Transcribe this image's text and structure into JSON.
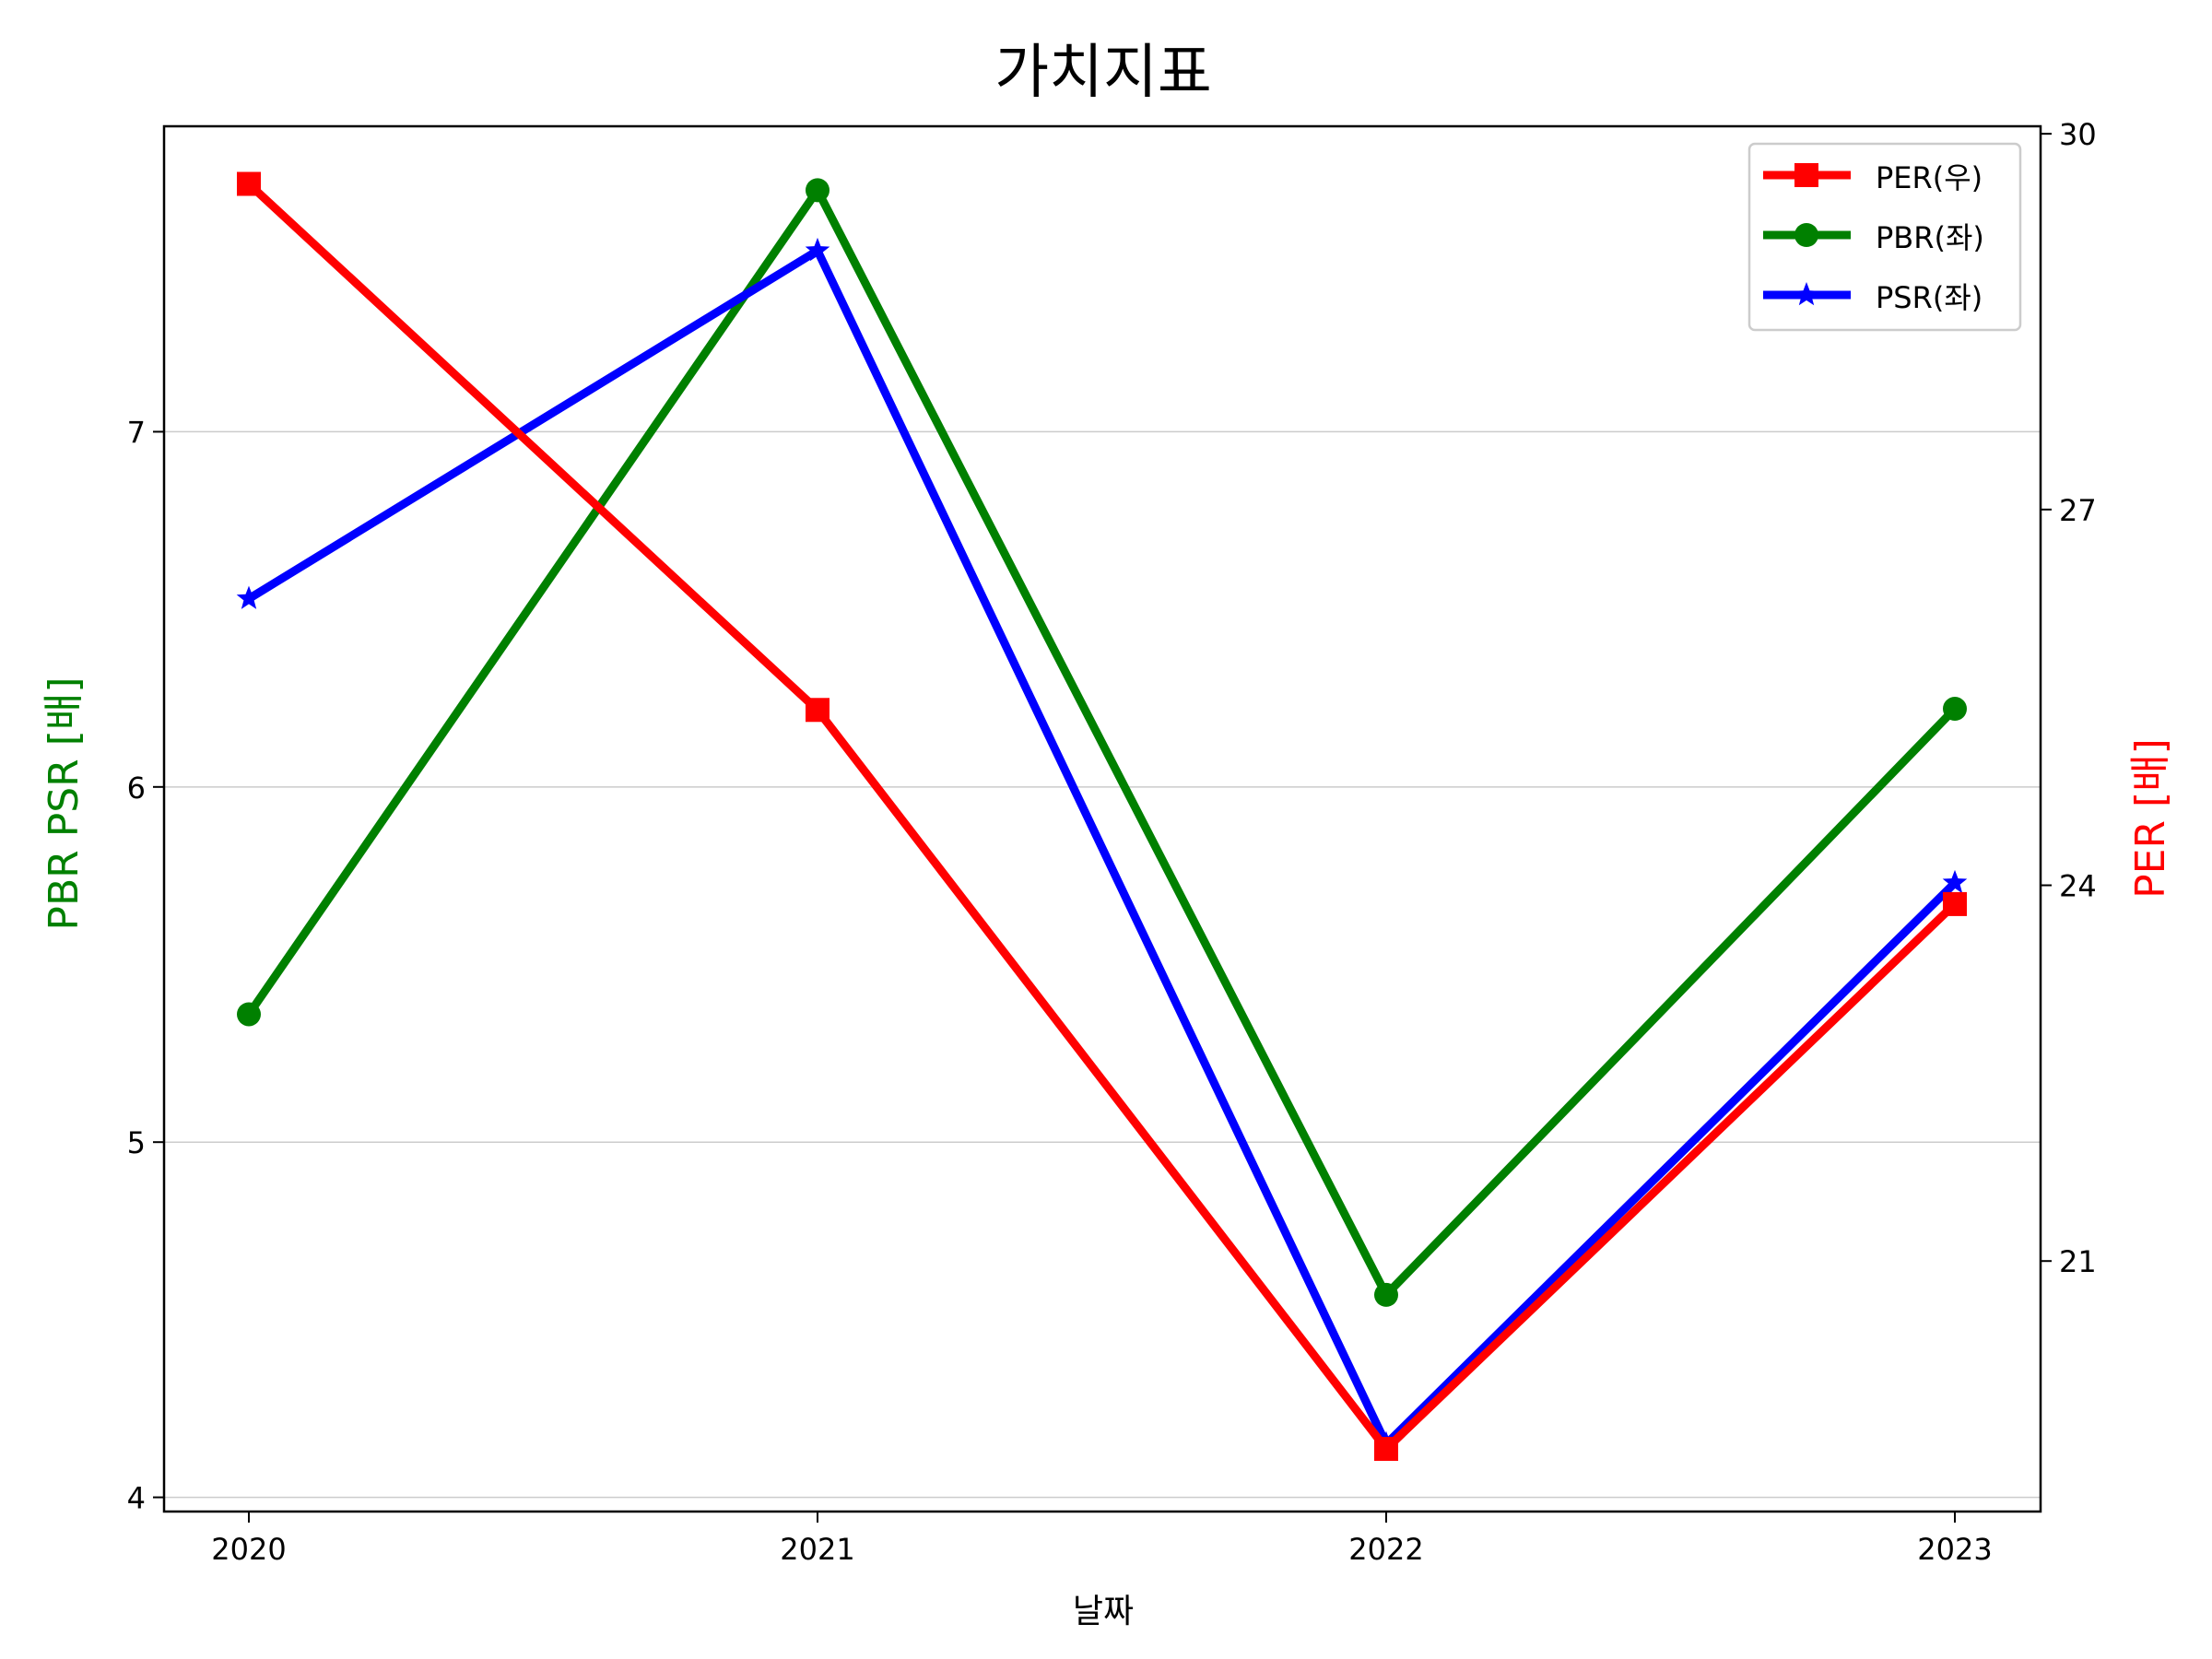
{
  "chart_data": {
    "type": "line",
    "title": "가치지표",
    "xlabel": "날짜",
    "ylabel_left": "PBR PSR [배]",
    "ylabel_right": "PER [배]",
    "categories": [
      "2020",
      "2021",
      "2022",
      "2023"
    ],
    "y_left": {
      "ticks": [
        "4",
        "5",
        "6",
        "7"
      ],
      "lim": [
        3.96,
        7.86
      ],
      "color": "#008000",
      "grid": true
    },
    "y_right": {
      "ticks": [
        "21",
        "24",
        "27",
        "30"
      ],
      "lim": [
        19.0,
        30.06
      ],
      "color": "#ff0000"
    },
    "legend_position": "top-right",
    "series": [
      {
        "name": "PER(우)",
        "axis": "right",
        "color": "#ff0000",
        "marker": "square",
        "values": [
          29.6,
          25.4,
          19.5,
          23.85
        ]
      },
      {
        "name": "PBR(좌)",
        "axis": "left",
        "color": "#008000",
        "marker": "circle",
        "values": [
          5.36,
          7.68,
          4.57,
          6.22
        ]
      },
      {
        "name": "PSR(좌)",
        "axis": "left",
        "color": "#0000ff",
        "marker": "star",
        "values": [
          6.53,
          7.51,
          4.15,
          5.73
        ]
      }
    ]
  }
}
